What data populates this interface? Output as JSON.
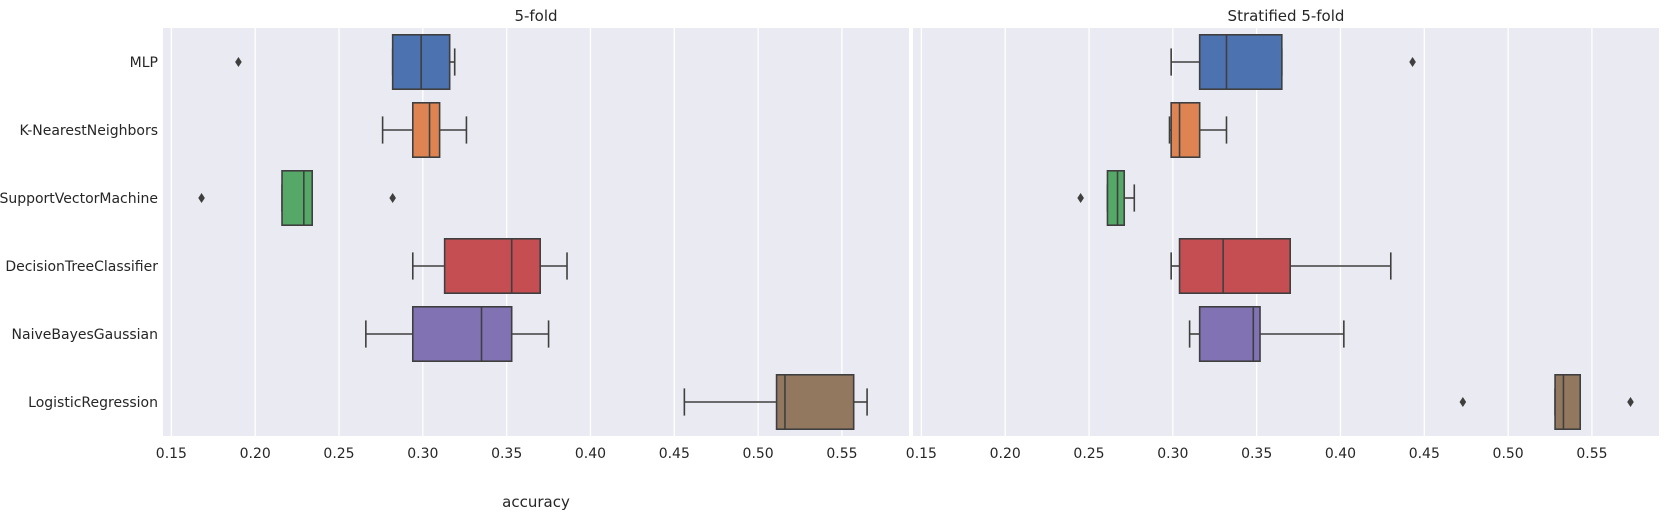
{
  "chart_data": {
    "type": "boxplot",
    "orientation": "horizontal",
    "shared_y": true,
    "categories": [
      "MLP",
      "K-NearestNeighbors",
      "SupportVectorMachine",
      "DecisionTreeClassifier",
      "NaiveBayesGaussian",
      "LogisticRegression"
    ],
    "colors": [
      "#4c72b0",
      "#dd8452",
      "#55a868",
      "#c44e52",
      "#8172b3",
      "#937860"
    ],
    "xlim": [
      0.145,
      0.59
    ],
    "xticks": [
      "0.15",
      "0.20",
      "0.25",
      "0.30",
      "0.35",
      "0.40",
      "0.45",
      "0.50",
      "0.55"
    ],
    "grid": true,
    "panels": [
      {
        "title": "5-fold",
        "xlabel": "accuracy",
        "boxes": [
          {
            "whislo": 0.282,
            "q1": 0.282,
            "med": 0.299,
            "q3": 0.316,
            "whishi": 0.319,
            "fliers": [
              0.19
            ]
          },
          {
            "whislo": 0.276,
            "q1": 0.294,
            "med": 0.304,
            "q3": 0.31,
            "whishi": 0.326,
            "fliers": []
          },
          {
            "whislo": 0.216,
            "q1": 0.216,
            "med": 0.229,
            "q3": 0.234,
            "whishi": 0.234,
            "fliers": [
              0.168,
              0.282
            ]
          },
          {
            "whislo": 0.294,
            "q1": 0.313,
            "med": 0.353,
            "q3": 0.37,
            "whishi": 0.386,
            "fliers": []
          },
          {
            "whislo": 0.266,
            "q1": 0.294,
            "med": 0.335,
            "q3": 0.353,
            "whishi": 0.375,
            "fliers": []
          },
          {
            "whislo": 0.456,
            "q1": 0.511,
            "med": 0.516,
            "q3": 0.557,
            "whishi": 0.565,
            "fliers": []
          }
        ]
      },
      {
        "title": "Stratified 5-fold",
        "xlabel": "",
        "boxes": [
          {
            "whislo": 0.299,
            "q1": 0.316,
            "med": 0.332,
            "q3": 0.365,
            "whishi": 0.365,
            "fliers": [
              0.443
            ]
          },
          {
            "whislo": 0.298,
            "q1": 0.299,
            "med": 0.304,
            "q3": 0.316,
            "whishi": 0.332,
            "fliers": []
          },
          {
            "whislo": 0.261,
            "q1": 0.261,
            "med": 0.267,
            "q3": 0.271,
            "whishi": 0.277,
            "fliers": [
              0.245
            ]
          },
          {
            "whislo": 0.299,
            "q1": 0.304,
            "med": 0.33,
            "q3": 0.37,
            "whishi": 0.43,
            "fliers": []
          },
          {
            "whislo": 0.31,
            "q1": 0.316,
            "med": 0.348,
            "q3": 0.352,
            "whishi": 0.402,
            "fliers": []
          },
          {
            "whislo": 0.528,
            "q1": 0.528,
            "med": 0.533,
            "q3": 0.543,
            "whishi": 0.543,
            "fliers": [
              0.473,
              0.573
            ]
          }
        ]
      }
    ]
  }
}
